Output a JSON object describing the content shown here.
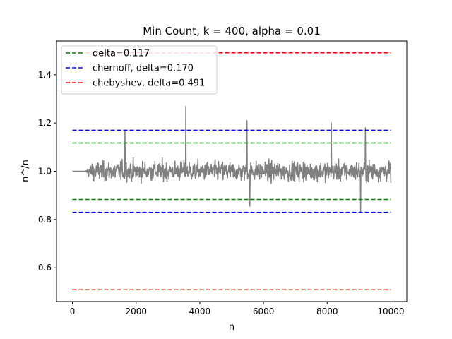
{
  "chart_data": {
    "type": "line",
    "title": "Min Count, k = 400, alpha = 0.01",
    "xlabel": "n",
    "ylabel": "n^/n",
    "xlim": [
      -500,
      10500
    ],
    "ylim": [
      0.46,
      1.54
    ],
    "xticks": [
      0,
      2000,
      4000,
      6000,
      8000,
      10000
    ],
    "xtick_labels": [
      "0",
      "2000",
      "4000",
      "6000",
      "8000",
      "10000"
    ],
    "yticks": [
      0.6,
      0.8,
      1.0,
      1.2,
      1.4
    ],
    "ytick_labels": [
      "0.6",
      "0.8",
      "1.0",
      "1.2",
      "1.4"
    ],
    "grid": false,
    "legend_position": "top-left",
    "series": [
      {
        "name": "delta=0.117",
        "kind": "band",
        "color": "#008000",
        "dash": "dashed",
        "x": [
          0,
          10000
        ],
        "upper": 1.117,
        "lower": 0.883
      },
      {
        "name": "chernoff, delta=0.170",
        "kind": "band",
        "color": "#0000ff",
        "dash": "dashed",
        "x": [
          0,
          10000
        ],
        "upper": 1.17,
        "lower": 0.83
      },
      {
        "name": "chebyshev, delta=0.491",
        "kind": "band",
        "color": "#ff0000",
        "dash": "dashed",
        "x": [
          0,
          10000
        ],
        "upper": 1.491,
        "lower": 0.509
      }
    ],
    "estimate_series": {
      "kind": "noisy-line",
      "color": "#808080",
      "x_range": [
        0,
        10000
      ],
      "flat_until": 400,
      "center": 1.0,
      "spikes": [
        {
          "x": 3560,
          "y": 1.27
        },
        {
          "x": 5480,
          "y": 1.21
        },
        {
          "x": 8130,
          "y": 1.2
        },
        {
          "x": 9200,
          "y": 1.18
        },
        {
          "x": 1650,
          "y": 1.17
        },
        {
          "x": 5570,
          "y": 0.855
        },
        {
          "x": 9050,
          "y": 0.83
        }
      ]
    }
  }
}
